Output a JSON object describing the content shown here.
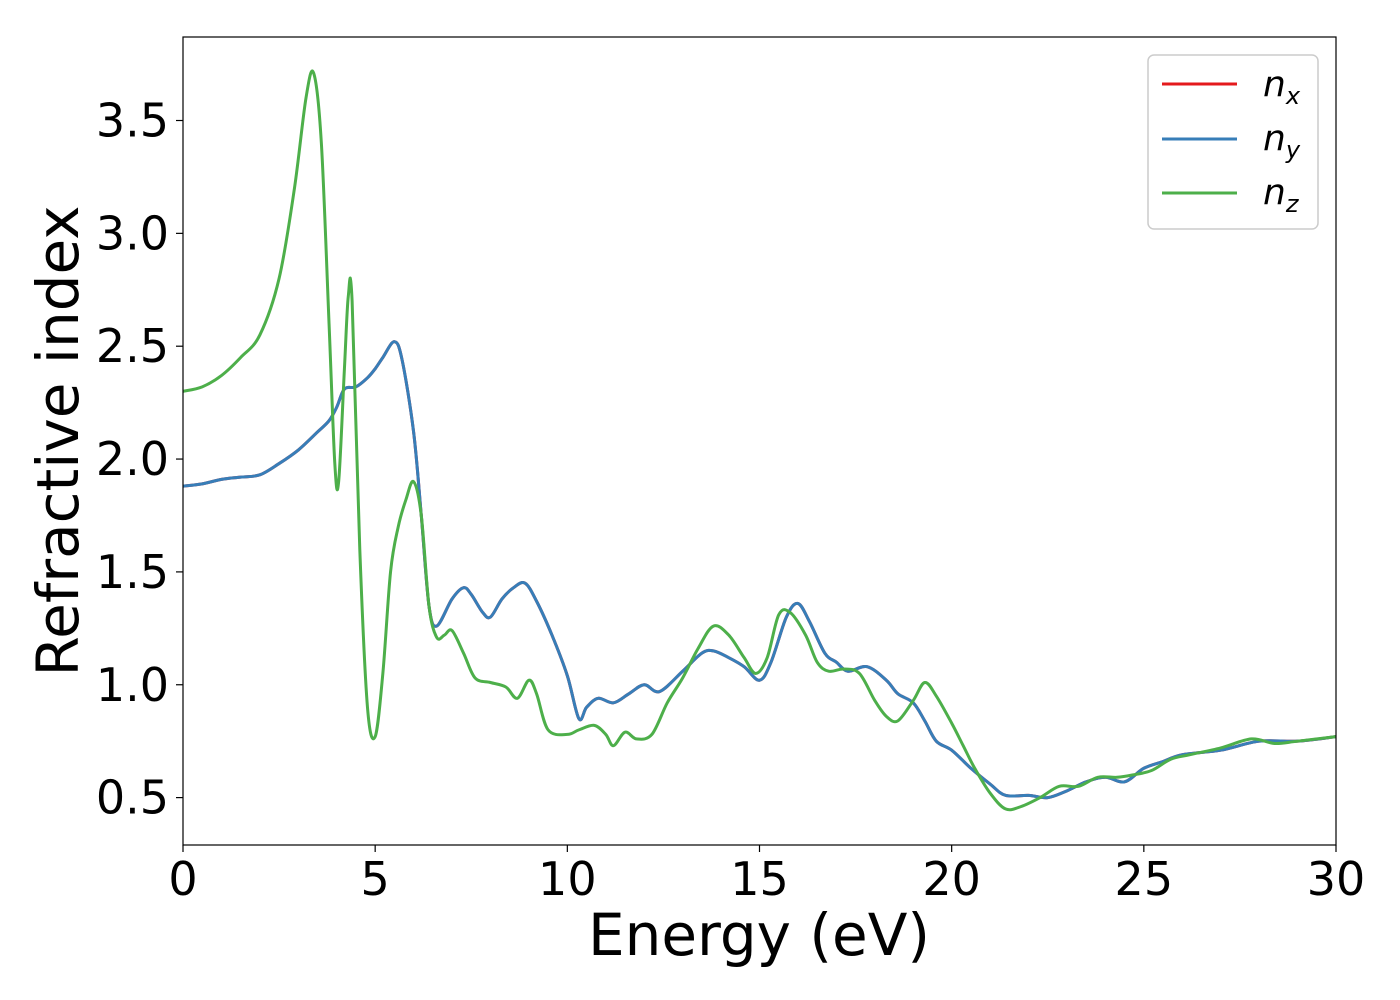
{
  "chart_data": {
    "type": "line",
    "xlabel": "Energy (eV)",
    "ylabel": "Refractive index",
    "xlim": [
      0,
      30
    ],
    "ylim": [
      0.29,
      3.87
    ],
    "x_ticks": [
      0,
      5,
      10,
      15,
      20,
      25,
      30
    ],
    "y_ticks": [
      0.5,
      1.0,
      1.5,
      2.0,
      2.5,
      3.0,
      3.5
    ],
    "x_tick_labels": [
      "0",
      "5",
      "10",
      "15",
      "20",
      "25",
      "30"
    ],
    "y_tick_labels": [
      "0.5",
      "1.0",
      "1.5",
      "2.0",
      "2.5",
      "3.0",
      "3.5"
    ],
    "grid": false,
    "legend_position": "top-right",
    "series": [
      {
        "name": "n_x",
        "label_main": "n",
        "label_sub": "x",
        "color": "#e41a1c",
        "points": [
          [
            0,
            1.88
          ],
          [
            0.5,
            1.89
          ],
          [
            1,
            1.91
          ],
          [
            1.5,
            1.92
          ],
          [
            2,
            1.93
          ],
          [
            2.5,
            1.98
          ],
          [
            3,
            2.04
          ],
          [
            3.5,
            2.12
          ],
          [
            3.8,
            2.17
          ],
          [
            4,
            2.23
          ],
          [
            4.2,
            2.31
          ],
          [
            4.5,
            2.32
          ],
          [
            4.8,
            2.36
          ],
          [
            5,
            2.4
          ],
          [
            5.2,
            2.45
          ],
          [
            5.5,
            2.52
          ],
          [
            5.7,
            2.44
          ],
          [
            6,
            2.12
          ],
          [
            6.2,
            1.75
          ],
          [
            6.4,
            1.35
          ],
          [
            6.6,
            1.26
          ],
          [
            7,
            1.38
          ],
          [
            7.3,
            1.43
          ],
          [
            7.5,
            1.4
          ],
          [
            7.8,
            1.32
          ],
          [
            8,
            1.3
          ],
          [
            8.3,
            1.38
          ],
          [
            8.6,
            1.43
          ],
          [
            8.9,
            1.45
          ],
          [
            9.2,
            1.37
          ],
          [
            9.6,
            1.22
          ],
          [
            10,
            1.04
          ],
          [
            10.3,
            0.85
          ],
          [
            10.5,
            0.9
          ],
          [
            10.8,
            0.94
          ],
          [
            11.2,
            0.92
          ],
          [
            11.6,
            0.96
          ],
          [
            12,
            1.0
          ],
          [
            12.4,
            0.97
          ],
          [
            13,
            1.06
          ],
          [
            13.5,
            1.14
          ],
          [
            13.8,
            1.15
          ],
          [
            14.2,
            1.12
          ],
          [
            14.6,
            1.08
          ],
          [
            15,
            1.02
          ],
          [
            15.3,
            1.1
          ],
          [
            15.7,
            1.3
          ],
          [
            16,
            1.36
          ],
          [
            16.3,
            1.28
          ],
          [
            16.7,
            1.14
          ],
          [
            17,
            1.1
          ],
          [
            17.3,
            1.06
          ],
          [
            17.8,
            1.08
          ],
          [
            18.3,
            1.02
          ],
          [
            18.6,
            0.96
          ],
          [
            19,
            0.92
          ],
          [
            19.3,
            0.84
          ],
          [
            19.6,
            0.75
          ],
          [
            20,
            0.71
          ],
          [
            20.5,
            0.63
          ],
          [
            21,
            0.56
          ],
          [
            21.4,
            0.51
          ],
          [
            22,
            0.51
          ],
          [
            22.5,
            0.5
          ],
          [
            23,
            0.53
          ],
          [
            23.5,
            0.57
          ],
          [
            24,
            0.59
          ],
          [
            24.5,
            0.57
          ],
          [
            25,
            0.63
          ],
          [
            25.5,
            0.66
          ],
          [
            26,
            0.69
          ],
          [
            27,
            0.71
          ],
          [
            28,
            0.75
          ],
          [
            29,
            0.75
          ],
          [
            30,
            0.77
          ]
        ]
      },
      {
        "name": "n_y",
        "label_main": "n",
        "label_sub": "y",
        "color": "#377eb8",
        "points": [
          [
            0,
            1.88
          ],
          [
            0.5,
            1.89
          ],
          [
            1,
            1.91
          ],
          [
            1.5,
            1.92
          ],
          [
            2,
            1.93
          ],
          [
            2.5,
            1.98
          ],
          [
            3,
            2.04
          ],
          [
            3.5,
            2.12
          ],
          [
            3.8,
            2.17
          ],
          [
            4,
            2.23
          ],
          [
            4.2,
            2.31
          ],
          [
            4.5,
            2.32
          ],
          [
            4.8,
            2.36
          ],
          [
            5,
            2.4
          ],
          [
            5.2,
            2.45
          ],
          [
            5.5,
            2.52
          ],
          [
            5.7,
            2.44
          ],
          [
            6,
            2.12
          ],
          [
            6.2,
            1.75
          ],
          [
            6.4,
            1.35
          ],
          [
            6.6,
            1.26
          ],
          [
            7,
            1.38
          ],
          [
            7.3,
            1.43
          ],
          [
            7.5,
            1.4
          ],
          [
            7.8,
            1.32
          ],
          [
            8,
            1.3
          ],
          [
            8.3,
            1.38
          ],
          [
            8.6,
            1.43
          ],
          [
            8.9,
            1.45
          ],
          [
            9.2,
            1.37
          ],
          [
            9.6,
            1.22
          ],
          [
            10,
            1.04
          ],
          [
            10.3,
            0.85
          ],
          [
            10.5,
            0.9
          ],
          [
            10.8,
            0.94
          ],
          [
            11.2,
            0.92
          ],
          [
            11.6,
            0.96
          ],
          [
            12,
            1.0
          ],
          [
            12.4,
            0.97
          ],
          [
            13,
            1.06
          ],
          [
            13.5,
            1.14
          ],
          [
            13.8,
            1.15
          ],
          [
            14.2,
            1.12
          ],
          [
            14.6,
            1.08
          ],
          [
            15,
            1.02
          ],
          [
            15.3,
            1.1
          ],
          [
            15.7,
            1.3
          ],
          [
            16,
            1.36
          ],
          [
            16.3,
            1.28
          ],
          [
            16.7,
            1.14
          ],
          [
            17,
            1.1
          ],
          [
            17.3,
            1.06
          ],
          [
            17.8,
            1.08
          ],
          [
            18.3,
            1.02
          ],
          [
            18.6,
            0.96
          ],
          [
            19,
            0.92
          ],
          [
            19.3,
            0.84
          ],
          [
            19.6,
            0.75
          ],
          [
            20,
            0.71
          ],
          [
            20.5,
            0.63
          ],
          [
            21,
            0.56
          ],
          [
            21.4,
            0.51
          ],
          [
            22,
            0.51
          ],
          [
            22.5,
            0.5
          ],
          [
            23,
            0.53
          ],
          [
            23.5,
            0.57
          ],
          [
            24,
            0.59
          ],
          [
            24.5,
            0.57
          ],
          [
            25,
            0.63
          ],
          [
            25.5,
            0.66
          ],
          [
            26,
            0.69
          ],
          [
            27,
            0.71
          ],
          [
            28,
            0.75
          ],
          [
            29,
            0.75
          ],
          [
            30,
            0.77
          ]
        ]
      },
      {
        "name": "n_z",
        "label_main": "n",
        "label_sub": "z",
        "color": "#4daf4a",
        "points": [
          [
            0,
            2.3
          ],
          [
            0.5,
            2.32
          ],
          [
            1,
            2.37
          ],
          [
            1.5,
            2.45
          ],
          [
            2,
            2.55
          ],
          [
            2.5,
            2.8
          ],
          [
            2.9,
            3.2
          ],
          [
            3.2,
            3.6
          ],
          [
            3.4,
            3.71
          ],
          [
            3.6,
            3.4
          ],
          [
            3.8,
            2.6
          ],
          [
            3.95,
            1.98
          ],
          [
            4.05,
            1.9
          ],
          [
            4.2,
            2.4
          ],
          [
            4.3,
            2.72
          ],
          [
            4.4,
            2.7
          ],
          [
            4.6,
            1.6
          ],
          [
            4.8,
            0.9
          ],
          [
            5,
            0.77
          ],
          [
            5.2,
            1.05
          ],
          [
            5.4,
            1.5
          ],
          [
            5.6,
            1.7
          ],
          [
            5.8,
            1.82
          ],
          [
            6,
            1.9
          ],
          [
            6.2,
            1.75
          ],
          [
            6.4,
            1.35
          ],
          [
            6.6,
            1.21
          ],
          [
            6.8,
            1.22
          ],
          [
            7,
            1.24
          ],
          [
            7.3,
            1.14
          ],
          [
            7.6,
            1.03
          ],
          [
            8,
            1.01
          ],
          [
            8.4,
            0.99
          ],
          [
            8.7,
            0.94
          ],
          [
            9,
            1.02
          ],
          [
            9.2,
            0.96
          ],
          [
            9.5,
            0.8
          ],
          [
            10,
            0.78
          ],
          [
            10.3,
            0.8
          ],
          [
            10.7,
            0.82
          ],
          [
            11,
            0.78
          ],
          [
            11.2,
            0.73
          ],
          [
            11.5,
            0.79
          ],
          [
            11.8,
            0.76
          ],
          [
            12.2,
            0.78
          ],
          [
            12.6,
            0.92
          ],
          [
            13,
            1.03
          ],
          [
            13.4,
            1.16
          ],
          [
            13.8,
            1.26
          ],
          [
            14.2,
            1.22
          ],
          [
            14.6,
            1.12
          ],
          [
            14.9,
            1.05
          ],
          [
            15.2,
            1.12
          ],
          [
            15.5,
            1.31
          ],
          [
            15.8,
            1.32
          ],
          [
            16.2,
            1.22
          ],
          [
            16.5,
            1.1
          ],
          [
            16.8,
            1.06
          ],
          [
            17.2,
            1.07
          ],
          [
            17.6,
            1.05
          ],
          [
            18,
            0.93
          ],
          [
            18.3,
            0.86
          ],
          [
            18.6,
            0.84
          ],
          [
            19,
            0.93
          ],
          [
            19.3,
            1.01
          ],
          [
            19.6,
            0.95
          ],
          [
            20,
            0.83
          ],
          [
            20.3,
            0.73
          ],
          [
            20.6,
            0.63
          ],
          [
            21,
            0.52
          ],
          [
            21.4,
            0.45
          ],
          [
            21.8,
            0.46
          ],
          [
            22.3,
            0.5
          ],
          [
            22.8,
            0.55
          ],
          [
            23.3,
            0.55
          ],
          [
            23.8,
            0.59
          ],
          [
            24.3,
            0.59
          ],
          [
            24.7,
            0.6
          ],
          [
            25.2,
            0.62
          ],
          [
            25.7,
            0.67
          ],
          [
            26.2,
            0.69
          ],
          [
            27,
            0.72
          ],
          [
            27.8,
            0.76
          ],
          [
            28.4,
            0.74
          ],
          [
            29,
            0.75
          ],
          [
            30,
            0.77
          ]
        ]
      }
    ]
  }
}
